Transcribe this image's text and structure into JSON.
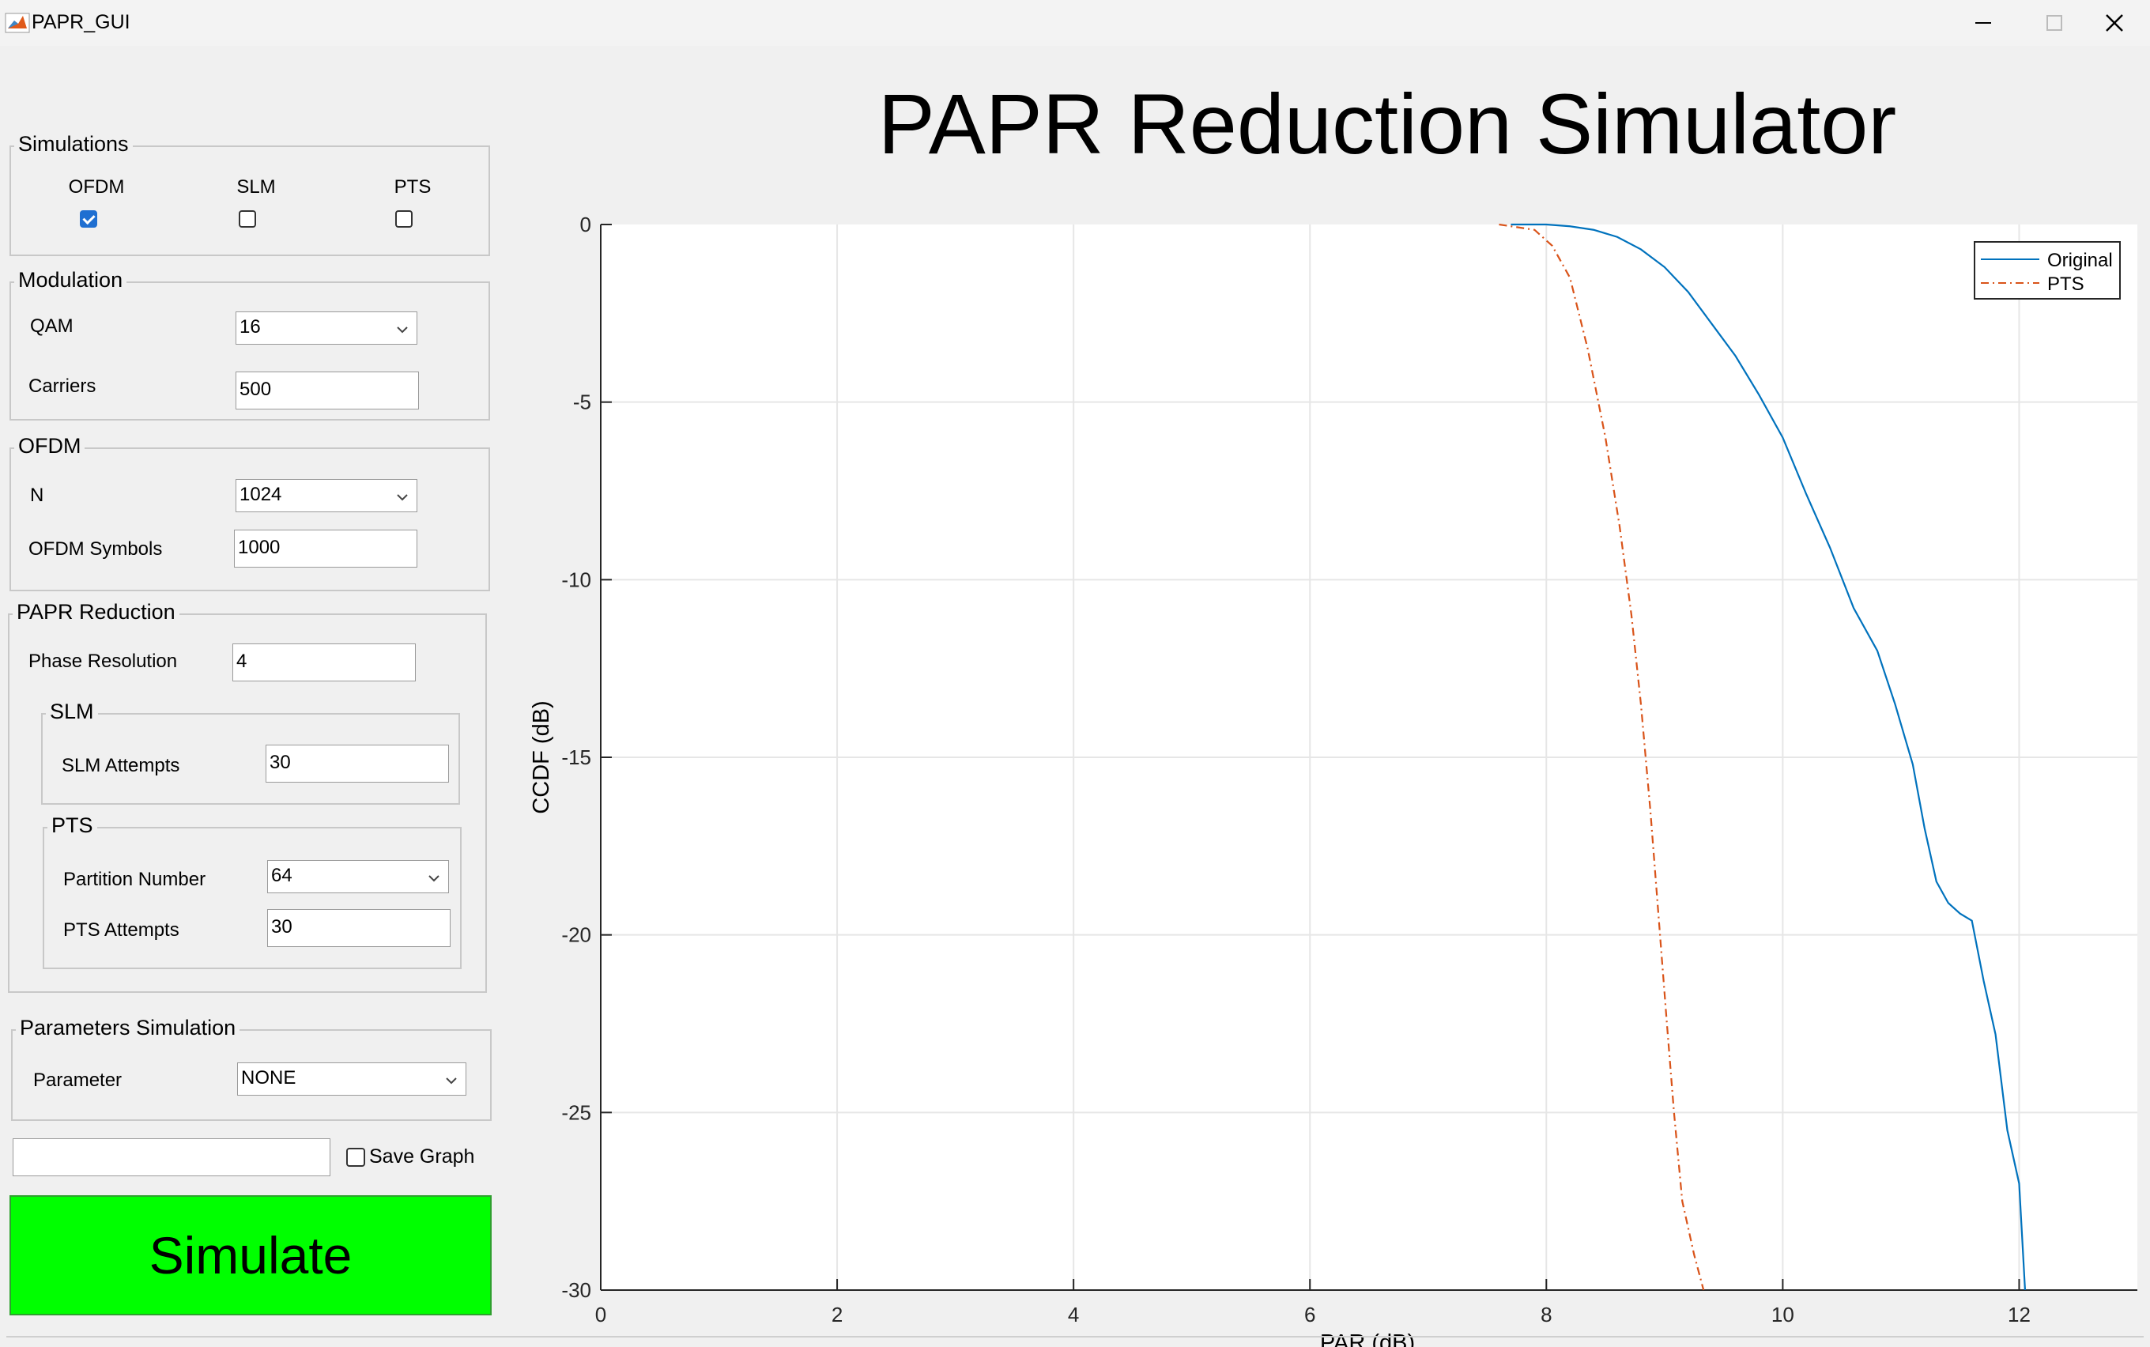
{
  "window": {
    "title": "PAPR_GUI"
  },
  "app_title": "PAPR Reduction Simulator",
  "simulations": {
    "title": "Simulations",
    "options": [
      {
        "label": "OFDM",
        "checked": true
      },
      {
        "label": "SLM",
        "checked": false
      },
      {
        "label": "PTS",
        "checked": false
      }
    ]
  },
  "modulation": {
    "title": "Modulation",
    "qam_label": "QAM",
    "qam_value": "16",
    "carriers_label": "Carriers",
    "carriers_value": "500"
  },
  "ofdm": {
    "title": "OFDM",
    "n_label": "N",
    "n_value": "1024",
    "symbols_label": "OFDM Symbols",
    "symbols_value": "1000"
  },
  "papr_reduction": {
    "title": "PAPR Reduction",
    "phase_label": "Phase Resolution",
    "phase_value": "4",
    "slm": {
      "title": "SLM",
      "attempts_label": "SLM Attempts",
      "attempts_value": "30"
    },
    "pts": {
      "title": "PTS",
      "partition_label": "Partition Number",
      "partition_value": "64",
      "attempts_label": "PTS Attempts",
      "attempts_value": "30"
    }
  },
  "parameters_simulation": {
    "title": "Parameters Simulation",
    "parameter_label": "Parameter",
    "parameter_value": "NONE"
  },
  "filename_input": {
    "value": ""
  },
  "save_graph": {
    "label": "Save Graph",
    "checked": false
  },
  "simulate_button": {
    "label": "Simulate"
  },
  "colors": {
    "original": "#0072BD",
    "pts": "#D95319",
    "simulate_bg": "#00FF00",
    "check_on": "#1F6FD1"
  },
  "chart_data": {
    "type": "line",
    "ylabel": "CCDF (dB)",
    "xlabel": "PAR (dB)",
    "xlim": [
      0,
      13
    ],
    "ylim": [
      -30,
      0
    ],
    "xticks": [
      0,
      2,
      4,
      6,
      8,
      10,
      12
    ],
    "yticks": [
      0,
      -5,
      -10,
      -15,
      -20,
      -25,
      -30
    ],
    "grid": true,
    "legend_position": "top-right",
    "series": [
      {
        "name": "Original",
        "style": "solid",
        "color": "#0072BD",
        "x": [
          7.7,
          8.0,
          8.2,
          8.4,
          8.6,
          8.8,
          9.0,
          9.2,
          9.4,
          9.6,
          9.8,
          10.0,
          10.2,
          10.4,
          10.6,
          10.8,
          10.95,
          11.1,
          11.2,
          11.3,
          11.4,
          11.5,
          11.6,
          11.7,
          11.8,
          11.9,
          12.0,
          12.05
        ],
        "y": [
          0,
          0,
          -0.05,
          -0.15,
          -0.35,
          -0.7,
          -1.2,
          -1.9,
          -2.8,
          -3.7,
          -4.8,
          -6.0,
          -7.6,
          -9.1,
          -10.8,
          -12.0,
          -13.5,
          -15.2,
          -17.0,
          -18.5,
          -19.1,
          -19.4,
          -19.6,
          -21.3,
          -22.8,
          -25.5,
          -27.0,
          -30
        ]
      },
      {
        "name": "PTS",
        "style": "dash-dot",
        "color": "#D95319",
        "x": [
          7.6,
          7.9,
          8.05,
          8.2,
          8.35,
          8.5,
          8.62,
          8.72,
          8.8,
          8.88,
          8.95,
          9.02,
          9.08,
          9.15,
          9.25,
          9.33
        ],
        "y": [
          0,
          -0.15,
          -0.6,
          -1.5,
          -3.5,
          -6.0,
          -8.5,
          -11.0,
          -13.5,
          -16.5,
          -19.5,
          -22.5,
          -25.0,
          -27.5,
          -29.0,
          -30
        ]
      }
    ]
  }
}
